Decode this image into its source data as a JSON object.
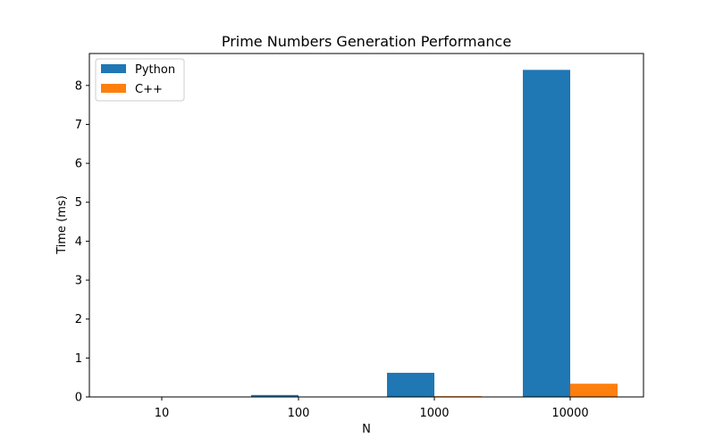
{
  "chart_data": {
    "type": "bar",
    "title": "Prime Numbers Generation Performance",
    "xlabel": "N",
    "ylabel": "Time (ms)",
    "categories": [
      "10",
      "100",
      "1000",
      "10000"
    ],
    "series": [
      {
        "name": "Python",
        "color": "#1f77b4",
        "values": [
          0.003,
          0.05,
          0.62,
          8.4
        ]
      },
      {
        "name": "C++",
        "color": "#ff7f0e",
        "values": [
          0.0005,
          0.003,
          0.02,
          0.34
        ]
      }
    ],
    "ylim": [
      0,
      8.82
    ],
    "yticks": [
      "0",
      "1",
      "2",
      "3",
      "4",
      "5",
      "6",
      "7",
      "8"
    ],
    "legend_position": "top-left",
    "grid": false
  }
}
